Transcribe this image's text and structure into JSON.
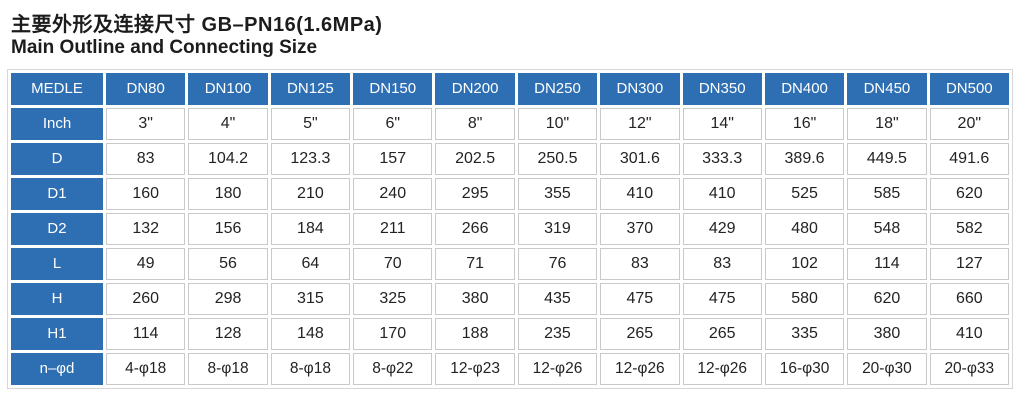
{
  "title": "主要外形及连接尺寸 GB–PN16(1.6MPa)",
  "subtitle": "Main Outline and Connecting  Size",
  "colors": {
    "header_blue": "#2e6fb4",
    "cell_border": "#c9c9c9",
    "header_text": "#ffffff",
    "cell_text": "#232323",
    "title_text": "#1c1c1c"
  },
  "table": {
    "columns": [
      "MEDLE",
      "DN80",
      "DN100",
      "DN125",
      "DN150",
      "DN200",
      "DN250",
      "DN300",
      "DN350",
      "DN400",
      "DN450",
      "DN500"
    ],
    "rows": [
      {
        "label": "Inch",
        "values": [
          "3\"",
          "4\"",
          "5\"",
          "6\"",
          "8\"",
          "10\"",
          "12\"",
          "14\"",
          "16\"",
          "18\"",
          "20\""
        ]
      },
      {
        "label": "D",
        "values": [
          "83",
          "104.2",
          "123.3",
          "157",
          "202.5",
          "250.5",
          "301.6",
          "333.3",
          "389.6",
          "449.5",
          "491.6"
        ]
      },
      {
        "label": "D1",
        "values": [
          "160",
          "180",
          "210",
          "240",
          "295",
          "355",
          "410",
          "410",
          "525",
          "585",
          "620"
        ]
      },
      {
        "label": "D2",
        "values": [
          "132",
          "156",
          "184",
          "211",
          "266",
          "319",
          "370",
          "429",
          "480",
          "548",
          "582"
        ]
      },
      {
        "label": "L",
        "values": [
          "49",
          "56",
          "64",
          "70",
          "71",
          "76",
          "83",
          "83",
          "102",
          "114",
          "127"
        ]
      },
      {
        "label": "H",
        "values": [
          "260",
          "298",
          "315",
          "325",
          "380",
          "435",
          "475",
          "475",
          "580",
          "620",
          "660"
        ]
      },
      {
        "label": "H1",
        "values": [
          "114",
          "128",
          "148",
          "170",
          "188",
          "235",
          "265",
          "265",
          "335",
          "380",
          "410"
        ]
      },
      {
        "label": "n–φd",
        "values": [
          "4-φ18",
          "8-φ18",
          "8-φ18",
          "8-φ22",
          "12-φ23",
          "12-φ26",
          "12-φ26",
          "12-φ26",
          "16-φ30",
          "20-φ30",
          "20-φ33"
        ]
      }
    ]
  }
}
